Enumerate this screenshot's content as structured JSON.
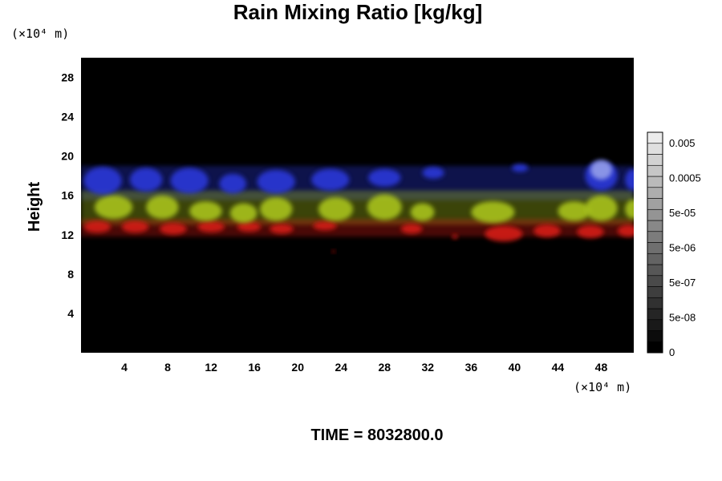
{
  "chart_data": {
    "type": "heatmap",
    "title": "Rain Mixing Ratio [kg/kg]",
    "ylabel": "Height",
    "xlabel": "",
    "x_unit": "(×10⁴ m)",
    "y_unit": "(×10⁴ m)",
    "xlim": [
      0,
      51
    ],
    "ylim": [
      0,
      30
    ],
    "x_ticks": [
      4,
      8,
      12,
      16,
      20,
      24,
      28,
      32,
      36,
      40,
      44,
      48
    ],
    "y_ticks": [
      4,
      8,
      12,
      16,
      20,
      24,
      28
    ],
    "background": "#000000",
    "grid": false,
    "time_label": "TIME = 8032800.0",
    "colorbar": {
      "placement": "right",
      "labels": [
        "0",
        "5e-08",
        "5e-07",
        "5e-06",
        "5e-05",
        "0.0005",
        "0.005"
      ],
      "levels": 20
    },
    "bands": [
      {
        "name": "blue",
        "y_bottom": 15.5,
        "y_top": 19.0,
        "color": "#2b38d8"
      },
      {
        "name": "yellow-green",
        "y_bottom": 13.0,
        "y_top": 16.5,
        "color": "#a8c21e"
      },
      {
        "name": "red",
        "y_bottom": 11.8,
        "y_top": 13.6,
        "color": "#d41a12"
      }
    ],
    "blobs": [
      {
        "band": "blue",
        "x": 2,
        "y": 17.5,
        "w": 3.5,
        "h": 2.8
      },
      {
        "band": "blue",
        "x": 6,
        "y": 17.6,
        "w": 3,
        "h": 2.4
      },
      {
        "band": "blue",
        "x": 10,
        "y": 17.5,
        "w": 3.5,
        "h": 2.6
      },
      {
        "band": "blue",
        "x": 14,
        "y": 17.2,
        "w": 2.5,
        "h": 2
      },
      {
        "band": "blue",
        "x": 18,
        "y": 17.4,
        "w": 3.5,
        "h": 2.4
      },
      {
        "band": "blue",
        "x": 23,
        "y": 17.6,
        "w": 3.5,
        "h": 2.2
      },
      {
        "band": "blue",
        "x": 28,
        "y": 17.8,
        "w": 3,
        "h": 1.8
      },
      {
        "band": "blue",
        "x": 32.5,
        "y": 18.3,
        "w": 2,
        "h": 1.2
      },
      {
        "band": "blue",
        "x": 40.5,
        "y": 18.8,
        "w": 1.5,
        "h": 0.8
      },
      {
        "band": "blue",
        "x": 48,
        "y": 18,
        "w": 3,
        "h": 3
      },
      {
        "band": "blue",
        "x": 51,
        "y": 17.6,
        "w": 1.6,
        "h": 2.2
      },
      {
        "band": "yellow-green",
        "x": 3,
        "y": 14.8,
        "w": 3.5,
        "h": 2.4
      },
      {
        "band": "yellow-green",
        "x": 7.5,
        "y": 14.8,
        "w": 3,
        "h": 2.4
      },
      {
        "band": "yellow-green",
        "x": 11.5,
        "y": 14.4,
        "w": 3,
        "h": 2
      },
      {
        "band": "yellow-green",
        "x": 15,
        "y": 14.2,
        "w": 2.5,
        "h": 2
      },
      {
        "band": "yellow-green",
        "x": 18,
        "y": 14.6,
        "w": 3,
        "h": 2.4
      },
      {
        "band": "yellow-green",
        "x": 23.5,
        "y": 14.6,
        "w": 3.2,
        "h": 2.4
      },
      {
        "band": "yellow-green",
        "x": 28,
        "y": 14.8,
        "w": 3.2,
        "h": 2.6
      },
      {
        "band": "yellow-green",
        "x": 31.5,
        "y": 14.3,
        "w": 2.2,
        "h": 1.8
      },
      {
        "band": "yellow-green",
        "x": 38,
        "y": 14.3,
        "w": 4,
        "h": 2.2
      },
      {
        "band": "yellow-green",
        "x": 45.5,
        "y": 14.4,
        "w": 3,
        "h": 2
      },
      {
        "band": "yellow-green",
        "x": 48,
        "y": 14.7,
        "w": 3,
        "h": 2.6
      },
      {
        "band": "yellow-green",
        "x": 51,
        "y": 14.6,
        "w": 1.6,
        "h": 2
      },
      {
        "band": "red",
        "x": 1.5,
        "y": 12.8,
        "w": 2.5,
        "h": 1.2
      },
      {
        "band": "red",
        "x": 5,
        "y": 12.8,
        "w": 2.5,
        "h": 1.2
      },
      {
        "band": "red",
        "x": 8.5,
        "y": 12.6,
        "w": 2.5,
        "h": 1.2
      },
      {
        "band": "red",
        "x": 12,
        "y": 12.8,
        "w": 2.5,
        "h": 1.1
      },
      {
        "band": "red",
        "x": 15.5,
        "y": 12.8,
        "w": 2.2,
        "h": 1
      },
      {
        "band": "red",
        "x": 18.5,
        "y": 12.6,
        "w": 2.2,
        "h": 1
      },
      {
        "band": "red",
        "x": 22.5,
        "y": 12.9,
        "w": 2.2,
        "h": 0.9
      },
      {
        "band": "red",
        "x": 30.5,
        "y": 12.6,
        "w": 2,
        "h": 1
      },
      {
        "band": "red",
        "x": 39,
        "y": 12.1,
        "w": 3.5,
        "h": 1.6
      },
      {
        "band": "red",
        "x": 43,
        "y": 12.4,
        "w": 2.5,
        "h": 1.3
      },
      {
        "band": "red",
        "x": 47,
        "y": 12.3,
        "w": 2.5,
        "h": 1.3
      },
      {
        "band": "red",
        "x": 50.5,
        "y": 12.4,
        "w": 2,
        "h": 1.2
      },
      {
        "band": "red",
        "x": 34.5,
        "y": 11.8,
        "w": 0.5,
        "h": 0.5
      },
      {
        "band": "red",
        "x": 23.3,
        "y": 10.3,
        "w": 0.3,
        "h": 0.3
      }
    ]
  }
}
